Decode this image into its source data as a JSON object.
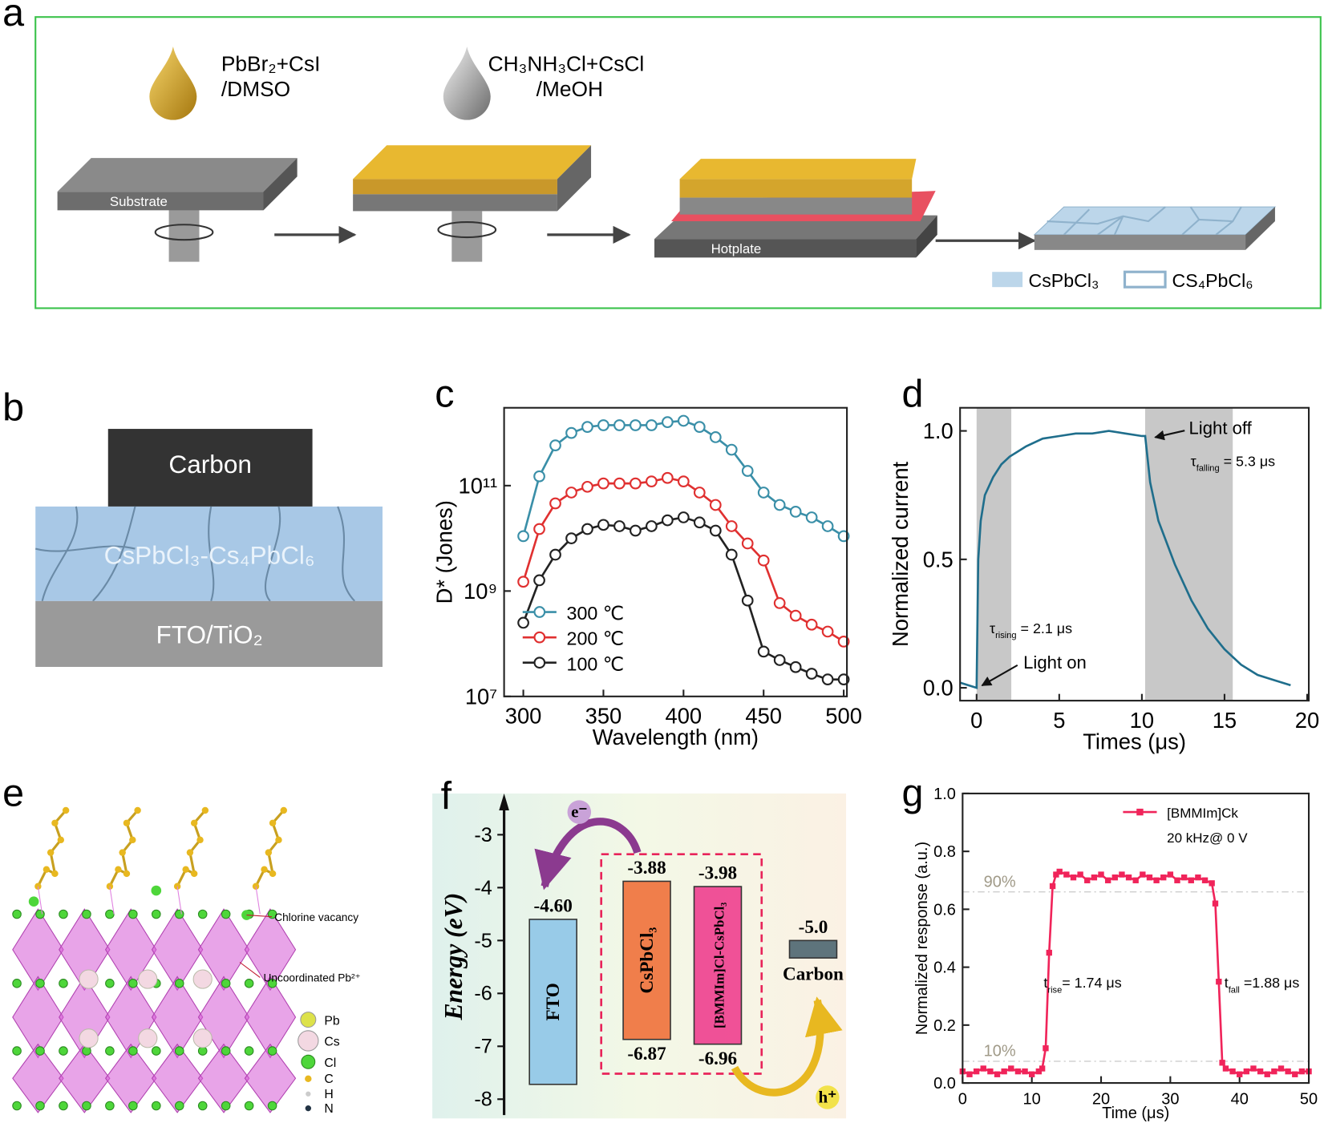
{
  "panels": {
    "a": {
      "label": "a",
      "drop1": [
        "PbBr₂+CsI",
        "/DMSO"
      ],
      "drop2": [
        "CH₃NH₃Cl+CsCl",
        "/MeOH"
      ],
      "substrate": "Substrate",
      "hotplate": "Hotplate",
      "legend": [
        "CsPbCl₃",
        "CS₄PbCl₆"
      ]
    },
    "b": {
      "label": "b",
      "layers": [
        "Carbon",
        "CsPbCl₃-Cs₄PbCl₆",
        "FTO/TiO₂"
      ]
    },
    "c": {
      "label": "c"
    },
    "d": {
      "label": "d"
    },
    "e": {
      "label": "e",
      "annotations": [
        "Chlorine vacancy",
        "Uncoordinated Pb²⁺"
      ],
      "legend": [
        "Pb",
        "Cs",
        "Cl",
        "C",
        "H",
        "N"
      ]
    },
    "f": {
      "label": "f"
    },
    "g": {
      "label": "g"
    }
  },
  "chart_data": [
    {
      "type": "line",
      "xlabel": "Wavelength (nm)",
      "ylabel": "D* (Jones)",
      "log_y": true,
      "marker": "circle",
      "legend": "lower left",
      "xlim": [
        288,
        502
      ],
      "ylim": [
        10000000.0,
        3000000000000.0
      ],
      "xticks": [
        300,
        350,
        400,
        450,
        500
      ],
      "yticks": [
        {
          "value": 10000000.0,
          "label": "10⁷"
        },
        {
          "value": 1000000000.0,
          "label": "10⁹"
        },
        {
          "value": 100000000000.0,
          "label": "10¹¹"
        }
      ],
      "x": [
        300,
        310,
        320,
        330,
        340,
        350,
        360,
        370,
        380,
        390,
        400,
        410,
        420,
        430,
        440,
        450,
        460,
        470,
        480,
        490,
        500
      ],
      "series": [
        {
          "name": "300 ℃",
          "color": "#3a8fa8",
          "values": [
            11000000000.0,
            150000000000.0,
            580000000000.0,
            1000000000000.0,
            1300000000000.0,
            1400000000000.0,
            1400000000000.0,
            1400000000000.0,
            1400000000000.0,
            1600000000000.0,
            1700000000000.0,
            1300000000000.0,
            830000000000.0,
            480000000000.0,
            190000000000.0,
            74000000000.0,
            43000000000.0,
            32000000000.0,
            25000000000.0,
            17000000000.0,
            11000000000.0
          ]
        },
        {
          "name": "200 ℃",
          "color": "#e03030",
          "values": [
            1500000000.0,
            15000000000.0,
            46000000000.0,
            74000000000.0,
            95000000000.0,
            110000000000.0,
            110000000000.0,
            110000000000.0,
            120000000000.0,
            140000000000.0,
            120000000000.0,
            74000000000.0,
            43000000000.0,
            17000000000.0,
            8000000000.0,
            3800000000.0,
            590000000.0,
            340000000.0,
            230000000.0,
            170000000.0,
            110000000.0
          ]
        },
        {
          "name": "100 ℃",
          "color": "#222222",
          "values": [
            250000000.0,
            1600000000.0,
            4900000000.0,
            10000000000.0,
            15000000000.0,
            18000000000.0,
            17000000000.0,
            14000000000.0,
            17000000000.0,
            22000000000.0,
            25000000000.0,
            20000000000.0,
            14000000000.0,
            4900000000.0,
            660000000.0,
            71000000.0,
            49000000.0,
            36000000.0,
            27000000.0,
            21000000.0,
            21000000.0
          ]
        }
      ]
    },
    {
      "type": "line",
      "xlabel": "Times (μs)",
      "ylabel": "Normalized current",
      "xlim": [
        -1,
        20.1
      ],
      "ylim": [
        -0.05,
        1.09
      ],
      "xticks": [
        0,
        5,
        10,
        15,
        20
      ],
      "yticks": [
        {
          "value": 0,
          "label": "0.0"
        },
        0.5,
        {
          "value": 1,
          "label": "1.0"
        }
      ],
      "shaded": [
        [
          0,
          2.1
        ],
        [
          10.2,
          15.5
        ]
      ],
      "annotations": [
        "Light off",
        "Light on",
        [
          "τ",
          "falling",
          " = 5.3 μs"
        ],
        [
          "τ",
          "rising",
          " = 2.1 μs"
        ]
      ],
      "x": [
        -1,
        -0.5,
        0,
        0.1,
        0.25,
        0.5,
        1,
        1.5,
        2,
        3,
        4,
        5,
        6,
        7,
        8,
        9,
        10,
        10.2,
        10.5,
        11,
        12,
        13,
        14,
        15,
        16,
        17,
        18,
        19
      ],
      "series": [
        {
          "color": "#1f6e8c",
          "values": [
            0.02,
            0.01,
            0.0,
            0.5,
            0.65,
            0.75,
            0.82,
            0.87,
            0.9,
            0.94,
            0.97,
            0.98,
            0.99,
            0.99,
            1.0,
            0.99,
            0.98,
            0.98,
            0.8,
            0.65,
            0.48,
            0.34,
            0.23,
            0.15,
            0.09,
            0.05,
            0.03,
            0.01
          ]
        }
      ]
    },
    {
      "type": "energy-diagram",
      "ylabel": "Energy (eV)",
      "ylim": [
        -8.3,
        -2.3
      ],
      "yticks": [
        -3,
        -4,
        -5,
        -6,
        -7,
        -8
      ],
      "annotations": [
        "e⁻",
        "h⁺"
      ],
      "bands": [
        {
          "name": "FTO",
          "color": "#8fc6e8",
          "top": -4.6,
          "top_label": "-4.60",
          "bottom": -7.72,
          "labeled": [
            "top"
          ]
        },
        {
          "name": "CsPbCl₃",
          "color": "#f0703a",
          "top": -3.88,
          "bottom": -6.87,
          "labeled": [
            "top",
            "bottom"
          ]
        },
        {
          "name": "[BMMIm]Cl-CsPbCl₃",
          "color": "#ee3f8e",
          "top": -3.98,
          "bottom": -6.96,
          "labeled": [
            "top",
            "bottom"
          ]
        },
        {
          "name": "Carbon",
          "color": "#4d6670",
          "top": -5.0,
          "top_label": "-5.0",
          "bottom": -5.33,
          "labeled": [
            "top"
          ]
        }
      ]
    },
    {
      "type": "line",
      "xlabel": "Time (μs)",
      "ylabel": "Normalized response (a.u.)",
      "marker": "square",
      "legend": "upper right",
      "legend_note": "20 kHz@ 0 V",
      "xlim": [
        0,
        50
      ],
      "ylim": [
        0,
        1
      ],
      "xticks": [
        0,
        10,
        20,
        30,
        40,
        50
      ],
      "yticks": [
        {
          "value": 0,
          "label": "0.0"
        },
        0.2,
        0.4,
        0.6,
        0.8,
        {
          "value": 1,
          "label": "1.0"
        }
      ],
      "reference_lines": [
        {
          "value": 0.66,
          "label": "90%"
        },
        {
          "value": 0.075,
          "label": "10%"
        }
      ],
      "annotations": [
        [
          "t",
          "rise",
          "= 1.74 μs"
        ],
        [
          "t",
          "fall",
          " =1.88 μs"
        ]
      ],
      "x": [
        0,
        1,
        2,
        3,
        4,
        5,
        6,
        7,
        8,
        9,
        10,
        11,
        11.5,
        12,
        12.5,
        13,
        13.5,
        14,
        15,
        16,
        17,
        18,
        19,
        20,
        21,
        22,
        23,
        24,
        25,
        26,
        27,
        28,
        29,
        30,
        31,
        32,
        33,
        34,
        35,
        36,
        36.5,
        37,
        37.5,
        38,
        39,
        40,
        41,
        42,
        43,
        44,
        45,
        46,
        47,
        48,
        49,
        50
      ],
      "series": [
        {
          "name": "[BMMIm]Ck",
          "color": "#f0245a",
          "values": [
            0.04,
            0.03,
            0.04,
            0.05,
            0.04,
            0.03,
            0.04,
            0.05,
            0.04,
            0.04,
            0.03,
            0.04,
            0.05,
            0.12,
            0.45,
            0.68,
            0.72,
            0.73,
            0.72,
            0.71,
            0.72,
            0.7,
            0.71,
            0.72,
            0.7,
            0.71,
            0.72,
            0.71,
            0.7,
            0.72,
            0.71,
            0.7,
            0.71,
            0.72,
            0.7,
            0.71,
            0.7,
            0.71,
            0.7,
            0.69,
            0.62,
            0.35,
            0.07,
            0.05,
            0.04,
            0.03,
            0.04,
            0.05,
            0.04,
            0.03,
            0.04,
            0.05,
            0.04,
            0.03,
            0.04,
            0.04
          ]
        }
      ]
    }
  ]
}
